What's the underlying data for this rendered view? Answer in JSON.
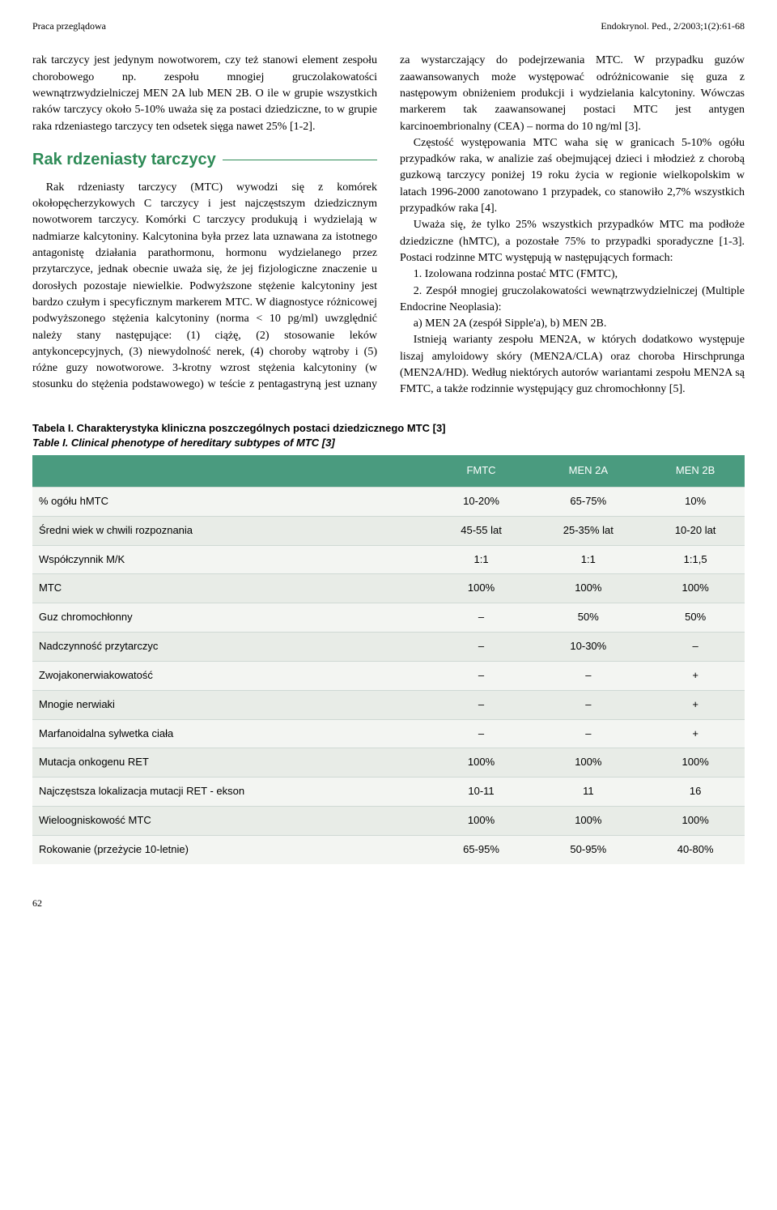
{
  "header": {
    "left": "Praca przeglądowa",
    "right": "Endokrynol. Ped., 2/2003;1(2):61-68"
  },
  "colors": {
    "accent": "#2e8b57",
    "table_header_bg": "#4a9b7f",
    "table_row_bg": "#f3f5f2",
    "table_row_alt_bg": "#e8ece7",
    "table_border": "#cfd9d4"
  },
  "body": {
    "p1": "rak tarczycy jest jedynym nowotworem, czy też stanowi element zespołu chorobowego np. zespołu mnogiej gruczolakowatości wewnątrzwydzielniczej MEN 2A lub MEN 2B. O ile w grupie wszystkich raków tarczycy około 5-10% uważa się za postaci dziedziczne, to w grupie raka rdzeniastego tarczycy ten odsetek sięga nawet 25% [1-2].",
    "section_title": "Rak rdzeniasty tarczycy",
    "p2": "Rak rdzeniasty tarczycy (MTC) wywodzi się z komórek okołopęcherzykowych C tarczycy i jest najczęstszym dziedzicznym nowotworem tarczycy. Komórki C tarczycy produkują i wydzielają w nadmiarze kalcytoniny. Kalcytonina była przez lata uznawana za istotnego antagonistę działania parathormonu, hormonu wydzielanego przez przytarczyce, jednak obecnie uważa się, że jej fizjologiczne znaczenie u dorosłych pozostaje niewielkie. Podwyższone stężenie kalcytoniny jest bardzo czułym i specyficznym markerem MTC. W diagnostyce różnicowej podwyższonego stężenia kalcytoniny (norma < 10 pg/ml) uwzględnić należy stany następujące: (1) ciążę, (2) stosowanie leków antykoncepcyjnych, (3) niewydolność nerek, (4) choroby wątroby i (5) różne guzy nowotworowe. 3-krotny wzrost stężenia kalcytoniny (w stosunku do stężenia podstawowego) w teście z pentagastryną jest uznany za wystarczający do podejrzewania MTC. W przypadku guzów zaawansowanych może występować odróżnicowanie się guza z następowym obniżeniem produkcji i wydzielania kalcytoniny. Wówczas markerem tak zaawansowanej postaci MTC jest antygen karcinoembrionalny (CEA) – norma do 10 ng/ml [3].",
    "p3": "Częstość występowania MTC waha się w granicach 5-10% ogółu przypadków raka, w analizie zaś obejmującej dzieci i młodzież z chorobą guzkową tarczycy poniżej 19 roku życia w regionie wielkopolskim w latach 1996-2000 zanotowano 1 przypadek, co stanowiło 2,7% wszystkich przypadków raka [4].",
    "p4": "Uważa się, że tylko 25% wszystkich przypadków MTC ma podłoże dziedziczne (hMTC), a pozostałe 75% to przypadki sporadyczne [1-3]. Postaci rodzinne MTC występują w następujących formach:",
    "li1": "1. Izolowana rodzinna postać MTC (FMTC),",
    "li2": "2. Zespół mnogiej gruczolakowatości wewnątrzwydzielniczej (Multiple Endocrine Neoplasia):",
    "li2a": "a) MEN 2A (zespół Sipple'a), b) MEN 2B.",
    "p5": "Istnieją warianty zespołu MEN2A, w których dodatkowo występuje liszaj amyloidowy skóry (MEN2A/CLA) oraz choroba Hirschprunga (MEN2A/HD). Według niektórych autorów wariantami zespołu MEN2A są FMTC, a także rodzinnie występujący guz chromochłonny [5]."
  },
  "table": {
    "caption_pl": "Tabela I. Charakterystyka kliniczna poszczególnych postaci dziedzicznego MTC [3]",
    "caption_en": "Table I. Clinical phenotype of hereditary subtypes of MTC [3]",
    "columns": [
      "",
      "FMTC",
      "MEN 2A",
      "MEN 2B"
    ],
    "rows": [
      [
        "% ogółu hMTC",
        "10-20%",
        "65-75%",
        "10%"
      ],
      [
        "Średni wiek w chwili rozpoznania",
        "45-55 lat",
        "25-35% lat",
        "10-20 lat"
      ],
      [
        "Współczynnik M/K",
        "1:1",
        "1:1",
        "1:1,5"
      ],
      [
        "MTC",
        "100%",
        "100%",
        "100%"
      ],
      [
        "Guz chromochłonny",
        "–",
        "50%",
        "50%"
      ],
      [
        "Nadczynność przytarczyc",
        "–",
        "10-30%",
        "–"
      ],
      [
        "Zwojakonerwiakowatość",
        "–",
        "–",
        "+"
      ],
      [
        "Mnogie nerwiaki",
        "–",
        "–",
        "+"
      ],
      [
        "Marfanoidalna sylwetka ciała",
        "–",
        "–",
        "+"
      ],
      [
        "Mutacja onkogenu RET",
        "100%",
        "100%",
        "100%"
      ],
      [
        "Najczęstsza lokalizacja mutacji RET - ekson",
        "10-11",
        "11",
        "16"
      ],
      [
        "Wieloogniskowość MTC",
        "100%",
        "100%",
        "100%"
      ],
      [
        "Rokowanie (przeżycie 10-letnie)",
        "65-95%",
        "50-95%",
        "40-80%"
      ]
    ]
  },
  "page_number": "62"
}
